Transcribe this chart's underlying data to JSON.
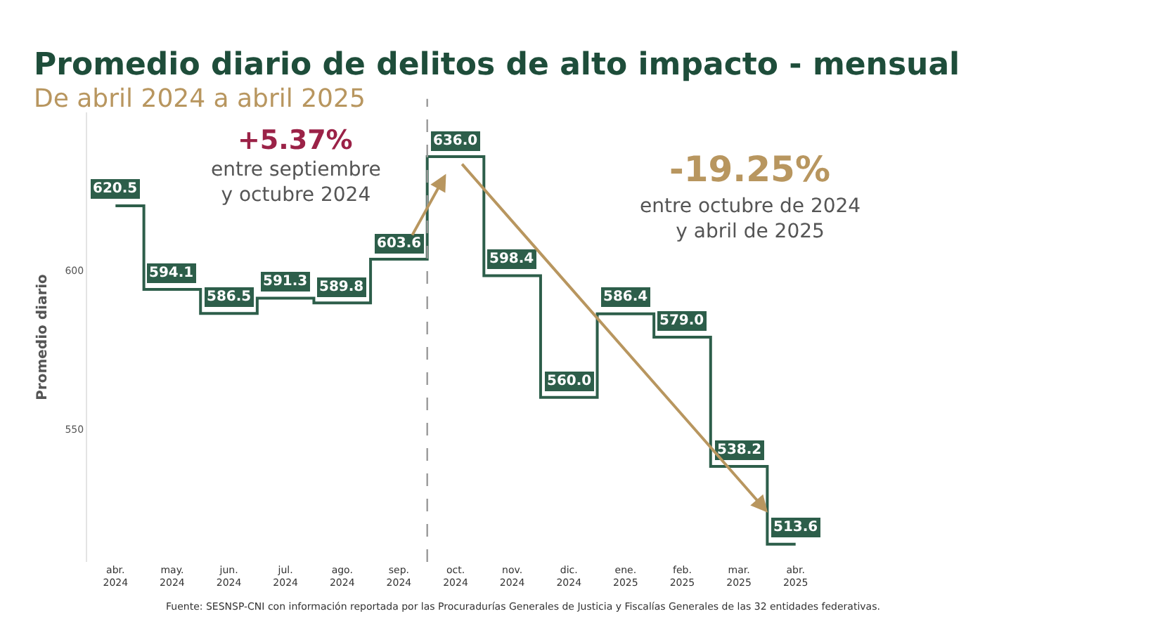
{
  "chart_data": {
    "type": "step",
    "title": "Promedio diario de delitos de alto impacto - mensual",
    "subtitle": "De abril 2024 a abril 2025",
    "ylabel": "Promedio diario",
    "categories": [
      "abr.\n2024",
      "may.\n2024",
      "jun.\n2024",
      "jul.\n2024",
      "ago.\n2024",
      "sep.\n2024",
      "oct.\n2024",
      "nov.\n2024",
      "dic.\n2024",
      "ene.\n2025",
      "feb.\n2025",
      "mar.\n2025",
      "abr.\n2025"
    ],
    "series": [
      {
        "color": "#2d5e4a",
        "values": [
          620.5,
          594.1,
          586.5,
          591.3,
          589.8,
          603.6,
          636.0,
          598.4,
          560.0,
          586.4,
          579.0,
          538.2,
          513.6
        ],
        "value_labels": [
          "620.5",
          "594.1",
          "586.5",
          "591.3",
          "589.8",
          "603.6",
          "636.0",
          "598.4",
          "560.0",
          "586.4",
          "579.0",
          "538.2",
          "513.6"
        ]
      }
    ],
    "ylim": [
      508,
      650
    ],
    "yticks": [
      550,
      600
    ],
    "grid": false,
    "marker": "none",
    "line_style": "solid",
    "annotations": [
      "+5.37%",
      "entre septiembre\ny octubre 2024",
      "-19.25%",
      "entre octubre de 2024\ny abril de 2025",
      "Fuente: SESNSP-CNI con información reportada por las Procuradurías Generales de Justicia y Fiscalías Generales de las 32 entidades federativas."
    ]
  }
}
